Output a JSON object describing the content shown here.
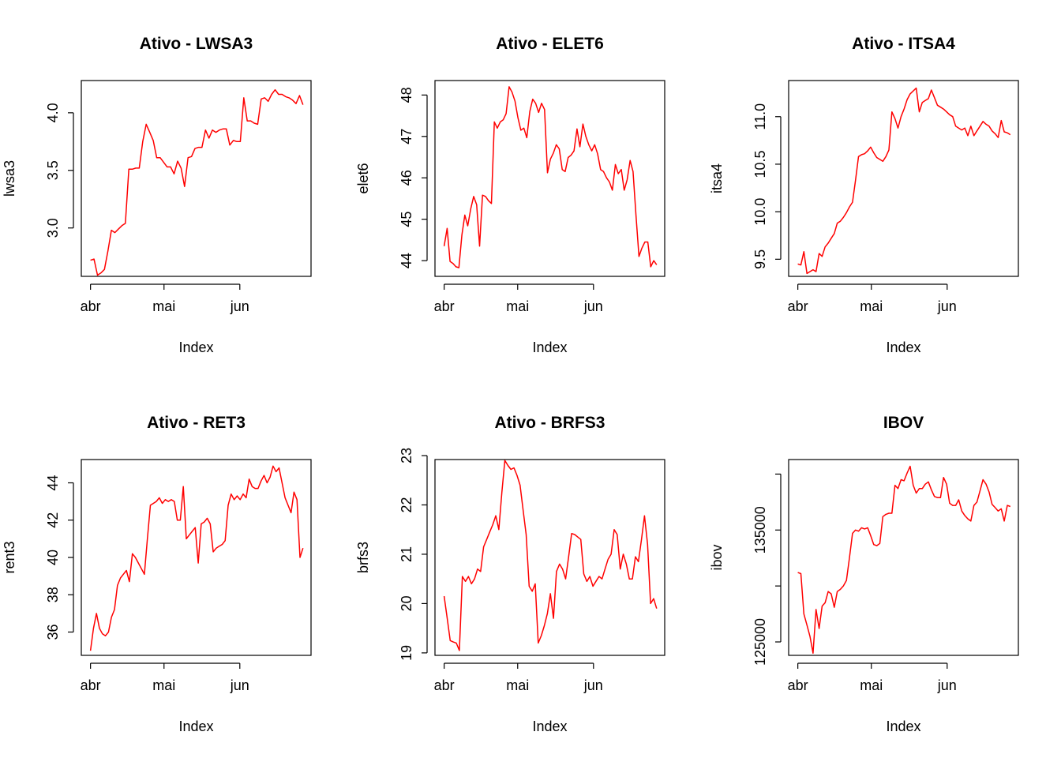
{
  "chart_data": [
    {
      "type": "line",
      "title": "Ativo - LWSA3",
      "xlabel": "Index",
      "ylabel": "lwsa3",
      "x_ticks": [
        "abr",
        "mai",
        "jun"
      ],
      "y_ticks": [
        "3.0",
        "3.5",
        "4.0"
      ],
      "ylim": [
        2.58,
        4.28
      ],
      "series": [
        {
          "color": "#ff0000",
          "values": [
            2.72,
            2.73,
            2.59,
            2.61,
            2.64,
            2.8,
            2.98,
            2.96,
            2.99,
            3.02,
            3.04,
            3.51,
            3.51,
            3.52,
            3.52,
            3.75,
            3.9,
            3.83,
            3.76,
            3.61,
            3.61,
            3.57,
            3.53,
            3.53,
            3.47,
            3.58,
            3.52,
            3.36,
            3.61,
            3.62,
            3.69,
            3.7,
            3.7,
            3.85,
            3.78,
            3.85,
            3.83,
            3.85,
            3.86,
            3.86,
            3.72,
            3.76,
            3.75,
            3.75,
            4.13,
            3.93,
            3.93,
            3.91,
            3.9,
            4.12,
            4.13,
            4.1,
            4.16,
            4.2,
            4.16,
            4.16,
            4.14,
            4.13,
            4.11,
            4.08,
            4.15,
            4.07
          ]
        }
      ]
    },
    {
      "type": "line",
      "title": "Ativo - ELET6",
      "xlabel": "Index",
      "ylabel": "elet6",
      "x_ticks": [
        "abr",
        "mai",
        "jun"
      ],
      "y_ticks": [
        "44",
        "45",
        "46",
        "47",
        "48"
      ],
      "ylim": [
        43.62,
        48.35
      ],
      "series": [
        {
          "color": "#ff0000",
          "values": [
            44.35,
            44.78,
            43.98,
            43.93,
            43.85,
            43.83,
            44.62,
            45.1,
            44.84,
            45.25,
            45.55,
            45.35,
            44.35,
            45.58,
            45.55,
            45.45,
            45.38,
            47.35,
            47.2,
            47.35,
            47.4,
            47.55,
            48.2,
            48.07,
            47.85,
            47.45,
            47.15,
            47.2,
            46.97,
            47.6,
            47.9,
            47.8,
            47.58,
            47.8,
            47.65,
            46.12,
            46.45,
            46.6,
            46.8,
            46.7,
            46.2,
            46.15,
            46.49,
            46.55,
            46.65,
            47.18,
            46.75,
            47.3,
            47.0,
            46.8,
            46.65,
            46.8,
            46.58,
            46.2,
            46.15,
            46.0,
            45.9,
            45.7,
            46.32,
            46.1,
            46.2,
            45.7,
            45.95,
            46.42,
            46.15,
            45.1,
            44.1,
            44.3,
            44.45,
            44.45,
            43.85,
            44.0,
            43.9
          ]
        }
      ]
    },
    {
      "type": "line",
      "title": "Ativo - ITSA4",
      "xlabel": "Index",
      "ylabel": "itsa4",
      "x_ticks": [
        "abr",
        "mai",
        "jun"
      ],
      "y_ticks": [
        "9.5",
        "10.0",
        "10.5",
        "11.0"
      ],
      "ylim": [
        9.32,
        11.38
      ],
      "series": [
        {
          "color": "#ff0000",
          "values": [
            9.45,
            9.44,
            9.58,
            9.35,
            9.37,
            9.39,
            9.37,
            9.56,
            9.53,
            9.63,
            9.67,
            9.72,
            9.77,
            9.88,
            9.9,
            9.94,
            9.99,
            10.05,
            10.1,
            10.33,
            10.58,
            10.6,
            10.61,
            10.64,
            10.68,
            10.62,
            10.57,
            10.55,
            10.53,
            10.58,
            10.65,
            11.05,
            10.98,
            10.88,
            11.0,
            11.08,
            11.18,
            11.24,
            11.27,
            11.3,
            11.05,
            11.15,
            11.17,
            11.19,
            11.28,
            11.2,
            11.12,
            11.1,
            11.08,
            11.05,
            11.02,
            11.0,
            10.9,
            10.88,
            10.86,
            10.88,
            10.8,
            10.9,
            10.8,
            10.85,
            10.9,
            10.95,
            10.92,
            10.9,
            10.85,
            10.82,
            10.78,
            10.96,
            10.84,
            10.83,
            10.81
          ]
        }
      ]
    },
    {
      "type": "line",
      "title": "Ativo - RET3",
      "xlabel": "Index",
      "ylabel": "rent3",
      "x_ticks": [
        "abr",
        "mai",
        "jun"
      ],
      "y_ticks": [
        "36",
        "38",
        "40",
        "42",
        "44"
      ],
      "ylim": [
        34.75,
        45.25
      ],
      "series": [
        {
          "color": "#ff0000",
          "values": [
            35.0,
            36.2,
            37.0,
            36.2,
            35.9,
            35.8,
            36.0,
            36.8,
            37.2,
            38.5,
            38.9,
            39.1,
            39.3,
            38.7,
            40.2,
            40.0,
            39.7,
            39.4,
            39.1,
            41.0,
            42.8,
            42.9,
            43.0,
            43.2,
            42.9,
            43.1,
            43.0,
            43.1,
            43.0,
            42.0,
            42.0,
            43.8,
            41.0,
            41.2,
            41.4,
            41.6,
            39.7,
            41.8,
            41.9,
            42.1,
            41.8,
            40.3,
            40.5,
            40.6,
            40.7,
            40.9,
            42.8,
            43.4,
            43.1,
            43.3,
            43.1,
            43.4,
            43.2,
            44.2,
            43.8,
            43.7,
            43.7,
            44.1,
            44.4,
            44.0,
            44.3,
            44.9,
            44.6,
            44.8,
            44.0,
            43.2,
            42.8,
            42.4,
            43.5,
            43.1,
            40.0,
            40.5
          ]
        }
      ]
    },
    {
      "type": "line",
      "title": "Ativo - BRFS3",
      "xlabel": "Index",
      "ylabel": "brfs3",
      "x_ticks": [
        "abr",
        "mai",
        "jun"
      ],
      "y_ticks": [
        "19",
        "20",
        "21",
        "22",
        "23"
      ],
      "ylim": [
        18.95,
        22.92
      ],
      "series": [
        {
          "color": "#ff0000",
          "values": [
            20.15,
            19.7,
            19.25,
            19.22,
            19.2,
            19.05,
            20.55,
            20.45,
            20.55,
            20.4,
            20.5,
            20.7,
            20.65,
            21.15,
            21.3,
            21.45,
            21.6,
            21.78,
            21.5,
            22.25,
            22.9,
            22.8,
            22.72,
            22.75,
            22.6,
            22.4,
            21.9,
            21.4,
            20.35,
            20.25,
            20.4,
            19.2,
            19.35,
            19.55,
            19.8,
            20.2,
            19.7,
            20.65,
            20.8,
            20.7,
            20.5,
            20.95,
            21.42,
            21.4,
            21.35,
            21.3,
            20.6,
            20.45,
            20.55,
            20.35,
            20.45,
            20.55,
            20.5,
            20.7,
            20.9,
            21.0,
            21.5,
            21.4,
            20.7,
            21.0,
            20.8,
            20.5,
            20.5,
            20.95,
            20.85,
            21.3,
            21.78,
            21.2,
            20.0,
            20.1,
            19.9
          ]
        }
      ]
    },
    {
      "type": "line",
      "title": "IBOV",
      "xlabel": "Index",
      "ylabel": "ibov",
      "x_ticks": [
        "abr",
        "mai",
        "jun"
      ],
      "y_ticks": [
        "125000",
        "130000",
        "135000",
        "140000"
      ],
      "y_tick_labels": [
        "125000",
        "",
        "135000",
        ""
      ],
      "ylim": [
        123800,
        141300
      ],
      "series": [
        {
          "color": "#ff0000",
          "values": [
            131200,
            131100,
            127500,
            126500,
            125500,
            124000,
            127900,
            126200,
            128200,
            128500,
            129500,
            129300,
            128100,
            129500,
            129700,
            130000,
            130500,
            132500,
            134700,
            135000,
            134900,
            135200,
            135100,
            135200,
            134500,
            133700,
            133600,
            133800,
            136200,
            136400,
            136500,
            136500,
            139000,
            138700,
            139500,
            139400,
            140100,
            140700,
            139000,
            138300,
            138700,
            138700,
            139100,
            139300,
            138600,
            138000,
            137900,
            137900,
            139700,
            139100,
            137400,
            137200,
            137200,
            137700,
            136700,
            136300,
            136000,
            135800,
            137200,
            137500,
            138500,
            139500,
            139100,
            138400,
            137300,
            137000,
            136700,
            136900,
            135800,
            137200,
            137100
          ]
        }
      ]
    }
  ]
}
